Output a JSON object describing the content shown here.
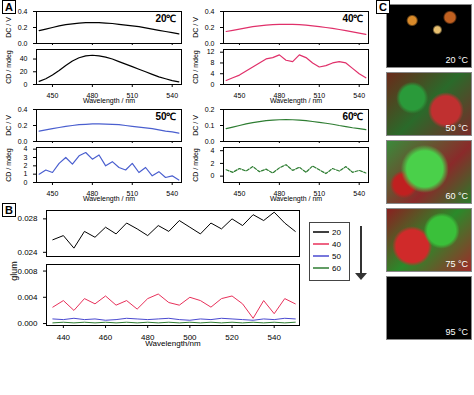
{
  "chart_data": [
    {
      "type": "line",
      "title": "20℃",
      "ylabel": "DC / V",
      "tick_labels": "y",
      "xlim": [
        438,
        547
      ],
      "xticks": [
        450,
        480,
        510,
        540
      ],
      "ylim": [
        0,
        0.4
      ],
      "yticks": [
        {
          "value": 0,
          "label": "0.0"
        },
        0.2,
        0.4
      ],
      "x": [
        440,
        445,
        450,
        455,
        460,
        465,
        470,
        475,
        480,
        485,
        490,
        495,
        500,
        505,
        510,
        515,
        520,
        525,
        530,
        535,
        540,
        545
      ],
      "series": [
        {
          "name": "20℃",
          "color": "#000000",
          "values": [
            0.16,
            0.18,
            0.2,
            0.22,
            0.235,
            0.245,
            0.255,
            0.26,
            0.262,
            0.26,
            0.255,
            0.25,
            0.24,
            0.23,
            0.22,
            0.21,
            0.195,
            0.18,
            0.165,
            0.15,
            0.135,
            0.12
          ]
        }
      ]
    },
    {
      "type": "line",
      "xlabel": "Wavelength / nm",
      "ylabel": "CD / mdeg",
      "xlim": [
        438,
        547
      ],
      "xticks": [
        450,
        480,
        510,
        540
      ],
      "ylim": [
        0,
        55
      ],
      "yticks": [
        0,
        20,
        40
      ],
      "x": [
        440,
        445,
        450,
        455,
        460,
        465,
        470,
        475,
        480,
        485,
        490,
        495,
        500,
        505,
        510,
        515,
        520,
        525,
        530,
        535,
        540,
        545
      ],
      "series": [
        {
          "name": "20℃",
          "color": "#000000",
          "values": [
            5,
            9,
            15,
            22,
            30,
            37,
            42,
            45,
            46,
            45,
            43,
            40,
            36,
            32,
            28,
            24,
            20,
            16,
            12,
            9,
            6,
            4
          ]
        }
      ]
    },
    {
      "type": "line",
      "title": "40℃",
      "ylabel": "DC / V",
      "tick_labels": "y",
      "xlim": [
        438,
        547
      ],
      "xticks": [
        450,
        480,
        510,
        540
      ],
      "ylim": [
        0,
        0.4
      ],
      "yticks": [
        {
          "value": 0,
          "label": "0.0"
        },
        0.2,
        0.4
      ],
      "x": [
        440,
        445,
        450,
        455,
        460,
        465,
        470,
        475,
        480,
        485,
        490,
        495,
        500,
        505,
        510,
        515,
        520,
        525,
        530,
        535,
        540,
        545
      ],
      "series": [
        {
          "name": "40℃",
          "color": "#e0306a",
          "values": [
            0.15,
            0.165,
            0.18,
            0.195,
            0.21,
            0.22,
            0.23,
            0.235,
            0.24,
            0.24,
            0.238,
            0.235,
            0.23,
            0.22,
            0.21,
            0.2,
            0.19,
            0.175,
            0.16,
            0.145,
            0.13,
            0.115
          ]
        }
      ]
    },
    {
      "type": "line",
      "xlabel": "Wavelength / nm",
      "ylabel": "CD / mdeg",
      "xlim": [
        438,
        547
      ],
      "xticks": [
        450,
        480,
        510,
        540
      ],
      "ylim": [
        0,
        13
      ],
      "yticks": [
        0,
        4,
        8,
        12
      ],
      "x": [
        440,
        445,
        450,
        455,
        460,
        465,
        470,
        475,
        480,
        485,
        490,
        495,
        500,
        505,
        510,
        515,
        520,
        525,
        530,
        535,
        540,
        545
      ],
      "series": [
        {
          "name": "40℃",
          "color": "#e0306a",
          "values": [
            1.5,
            2.5,
            3.5,
            5,
            6.5,
            8,
            9.5,
            10,
            11,
            9,
            8.5,
            11,
            10,
            8,
            6.5,
            7,
            8,
            8.5,
            8,
            6,
            4,
            2.5
          ]
        }
      ]
    },
    {
      "type": "line",
      "title": "50℃",
      "ylabel": "DC / V",
      "tick_labels": "y",
      "xlim": [
        438,
        547
      ],
      "xticks": [
        450,
        480,
        510,
        540
      ],
      "ylim": [
        0,
        0.4
      ],
      "yticks": [
        {
          "value": 0,
          "label": "0.0"
        },
        0.2,
        0.4
      ],
      "x": [
        440,
        445,
        450,
        455,
        460,
        465,
        470,
        475,
        480,
        485,
        490,
        495,
        500,
        505,
        510,
        515,
        520,
        525,
        530,
        535,
        540,
        545
      ],
      "series": [
        {
          "name": "50℃",
          "color": "#4a5fcf",
          "values": [
            0.13,
            0.145,
            0.16,
            0.175,
            0.19,
            0.2,
            0.21,
            0.215,
            0.22,
            0.22,
            0.218,
            0.215,
            0.21,
            0.2,
            0.19,
            0.18,
            0.17,
            0.16,
            0.145,
            0.13,
            0.12,
            0.105
          ]
        }
      ]
    },
    {
      "type": "line",
      "xlabel": "Wavelength / nm",
      "ylabel": "CD / mdeg",
      "xlim": [
        438,
        547
      ],
      "xticks": [
        450,
        480,
        510,
        540
      ],
      "ylim": [
        0,
        4.2
      ],
      "yticks": [
        0,
        1,
        2,
        3,
        4
      ],
      "x": [
        440,
        445,
        450,
        455,
        460,
        465,
        470,
        475,
        480,
        485,
        490,
        495,
        500,
        505,
        510,
        515,
        520,
        525,
        530,
        535,
        540,
        545
      ],
      "series": [
        {
          "name": "50℃",
          "color": "#4a5fcf",
          "values": [
            1,
            1.5,
            1.2,
            2.3,
            3,
            2.2,
            3.2,
            3.6,
            2.8,
            3.3,
            2,
            2.5,
            1.8,
            1.5,
            2.3,
            1.2,
            1.8,
            0.8,
            1.3,
            0.6,
            0.8,
            0.3
          ]
        }
      ]
    },
    {
      "type": "line",
      "title": "60℃",
      "ylabel": "DC / V",
      "tick_labels": "y",
      "xlim": [
        438,
        547
      ],
      "xticks": [
        450,
        480,
        510,
        540
      ],
      "ylim": [
        0,
        0.2
      ],
      "yticks": [
        {
          "value": 0,
          "label": "0.0"
        },
        0.1,
        0.2
      ],
      "x": [
        440,
        445,
        450,
        455,
        460,
        465,
        470,
        475,
        480,
        485,
        490,
        495,
        500,
        505,
        510,
        515,
        520,
        525,
        530,
        535,
        540,
        545
      ],
      "series": [
        {
          "name": "60℃",
          "color": "#2e7d32",
          "values": [
            0.08,
            0.09,
            0.1,
            0.11,
            0.118,
            0.124,
            0.13,
            0.134,
            0.136,
            0.137,
            0.136,
            0.134,
            0.13,
            0.125,
            0.12,
            0.114,
            0.108,
            0.1,
            0.093,
            0.086,
            0.08,
            0.074
          ]
        }
      ]
    },
    {
      "type": "line",
      "xlabel": "Wavelength / nm",
      "ylabel": "CD / mdeg",
      "line_style": "dashed",
      "xlim": [
        438,
        547
      ],
      "xticks": [
        450,
        480,
        510,
        540
      ],
      "ylim": [
        -1,
        4.5
      ],
      "yticks": [
        0,
        2,
        4
      ],
      "x": [
        440,
        445,
        450,
        455,
        460,
        465,
        470,
        475,
        480,
        485,
        490,
        495,
        500,
        505,
        510,
        515,
        520,
        525,
        530,
        535,
        540,
        545
      ],
      "series": [
        {
          "name": "60℃",
          "color": "#2e7d32",
          "values": [
            1,
            0.6,
            1.2,
            0.8,
            1.5,
            0.7,
            1.1,
            0.5,
            1.3,
            1.8,
            0.9,
            1.4,
            0.6,
            1.6,
            1.0,
            0.4,
            1.2,
            0.8,
            1.5,
            0.6,
            0.9,
            0.5
          ]
        }
      ]
    },
    {
      "type": "line",
      "xlabel": "Wavelength/nm",
      "ylabel": "glum",
      "legend": "right",
      "xlim": [
        432,
        552
      ],
      "xticks": [
        440,
        460,
        480,
        500,
        520,
        540
      ],
      "ylim": [
        -0.0003,
        0.029
      ],
      "axis_break": [
        0.009,
        0.0235
      ],
      "yticks": [
        {
          "value": 0,
          "label": "0.000"
        },
        0.004,
        0.008,
        0.024,
        0.028
      ],
      "x": [
        435,
        440,
        445,
        450,
        455,
        460,
        465,
        470,
        475,
        480,
        485,
        490,
        495,
        500,
        505,
        510,
        515,
        520,
        525,
        530,
        535,
        540,
        545,
        550
      ],
      "series": [
        {
          "name": "20",
          "color": "#000000",
          "values": [
            0.0255,
            0.026,
            0.0245,
            0.0265,
            0.0258,
            0.027,
            0.0262,
            0.0275,
            0.0268,
            0.026,
            0.0272,
            0.0265,
            0.0278,
            0.027,
            0.0262,
            0.0275,
            0.0268,
            0.028,
            0.0272,
            0.0285,
            0.0278,
            0.0288,
            0.0275,
            0.0265
          ]
        },
        {
          "name": "40",
          "color": "#e8305a",
          "values": [
            0.0025,
            0.0035,
            0.002,
            0.0038,
            0.003,
            0.0042,
            0.0028,
            0.0035,
            0.0022,
            0.0038,
            0.0045,
            0.0032,
            0.0028,
            0.004,
            0.0035,
            0.0025,
            0.0038,
            0.0042,
            0.003,
            0.0008,
            0.0035,
            0.0015,
            0.0038,
            0.003
          ]
        },
        {
          "name": "50",
          "color": "#4a4ad0",
          "values": [
            0.0007,
            0.0006,
            0.0008,
            0.0006,
            0.0007,
            0.0005,
            0.0006,
            0.0008,
            0.0007,
            0.0006,
            0.0007,
            0.0008,
            0.0006,
            0.0005,
            0.0007,
            0.0006,
            0.0008,
            0.0007,
            0.0006,
            0.0005,
            0.0007,
            0.0006,
            0.0008,
            0.0007
          ]
        },
        {
          "name": "60",
          "color": "#2e7d32",
          "values": [
            0.0001,
            0.0002,
            0.0001,
            0.0002,
            0.0001,
            0.0002,
            0.0001,
            0.0002,
            0.0001,
            0.0002,
            0.0001,
            0.0002,
            0.0001,
            0.0002,
            0.0001,
            0.0002,
            0.0001,
            0.0002,
            0.0001,
            0.0002,
            0.0001,
            0.0002,
            0.0001,
            0.0002
          ]
        }
      ]
    }
  ],
  "panel_labels": [
    "A",
    "B",
    "C"
  ],
  "micrographs": [
    "20 °C",
    "50 °C",
    "60 °C",
    "75 °C",
    "95 °C"
  ]
}
